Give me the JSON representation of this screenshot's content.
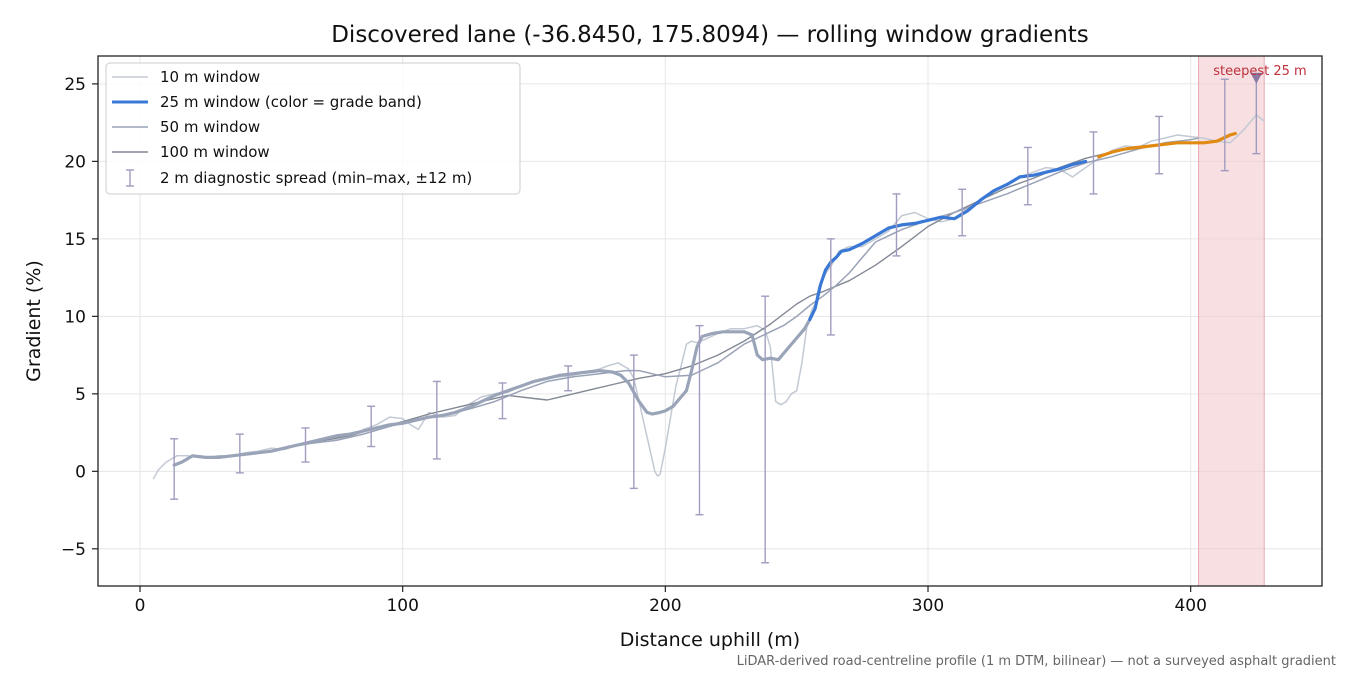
{
  "chart_data": {
    "type": "line",
    "title": "Discovered lane (-36.8450, 175.8094) — rolling window gradients",
    "xlabel": "Distance uphill (m)",
    "ylabel": "Gradient (%)",
    "xlim": [
      -16,
      450
    ],
    "ylim": [
      -7.4,
      26.8
    ],
    "x_ticks": [
      0,
      100,
      200,
      300,
      400
    ],
    "y_ticks": [
      -5,
      0,
      5,
      10,
      15,
      20,
      25
    ],
    "x_tick_labels": [
      "0",
      "100",
      "200",
      "300",
      "400"
    ],
    "y_tick_labels": [
      "−5",
      "0",
      "5",
      "10",
      "15",
      "20",
      "25"
    ],
    "grid": true,
    "legend_position": "top-left",
    "footnote": "LiDAR-derived road-centreline profile (1 m DTM, bilinear) — not a surveyed asphalt gradient",
    "colors": {
      "w10": "#c3c9d4",
      "w25_gray": "#9aa4b8",
      "w25_blue": "#3a78d6",
      "w25_orange": "#e08a12",
      "w50": "#99a2b6",
      "w100": "#828894",
      "errorbar": "#a09cbf",
      "highlight": "#f2c9cf",
      "marker": "#8a7aa3",
      "steep_text": "#c0303a"
    },
    "series": [
      {
        "name": "10 m window",
        "key": "w10",
        "x": [
          5,
          7,
          10,
          14,
          18,
          22,
          26,
          30,
          35,
          40,
          45,
          50,
          55,
          60,
          65,
          70,
          75,
          80,
          85,
          90,
          95,
          100,
          103,
          106,
          110,
          115,
          120,
          125,
          130,
          135,
          140,
          145,
          150,
          155,
          160,
          165,
          170,
          175,
          178,
          182,
          186,
          188,
          190,
          192,
          194,
          196,
          197,
          198,
          200,
          202,
          204,
          206,
          208,
          210,
          212,
          215,
          220,
          225,
          230,
          235,
          238,
          240,
          242,
          244,
          246,
          248,
          250,
          252,
          254,
          256,
          258,
          260,
          262,
          264,
          266,
          270,
          275,
          280,
          285,
          290,
          295,
          300,
          305,
          310,
          315,
          320,
          325,
          330,
          335,
          340,
          345,
          350,
          355,
          360,
          365,
          370,
          375,
          380,
          385,
          390,
          395,
          400,
          405,
          410,
          415,
          420,
          425,
          428
        ],
        "y": [
          -0.5,
          0.1,
          0.6,
          1.0,
          1.0,
          0.9,
          0.9,
          1.0,
          1.0,
          1.2,
          1.3,
          1.5,
          1.4,
          1.7,
          1.9,
          2.0,
          2.1,
          2.2,
          2.7,
          3.0,
          3.5,
          3.4,
          3.0,
          2.7,
          3.8,
          3.5,
          3.6,
          4.3,
          4.8,
          5.0,
          5.1,
          5.5,
          5.8,
          6.0,
          6.1,
          6.2,
          6.4,
          6.6,
          6.8,
          7.0,
          6.6,
          6.0,
          4.5,
          3.0,
          1.5,
          0.0,
          -0.3,
          -0.2,
          1.5,
          3.5,
          5.5,
          6.8,
          8.2,
          8.4,
          8.3,
          8.5,
          8.9,
          9.2,
          9.2,
          9.4,
          9.1,
          8.0,
          4.5,
          4.3,
          4.5,
          5.0,
          5.2,
          7.0,
          9.5,
          10.5,
          11.0,
          12.5,
          13.0,
          13.5,
          14.2,
          14.5,
          14.5,
          15.0,
          15.5,
          16.5,
          16.7,
          16.3,
          16.1,
          16.3,
          17.0,
          17.5,
          18.0,
          18.5,
          19.0,
          19.3,
          19.6,
          19.5,
          19.0,
          19.6,
          20.2,
          20.7,
          21.0,
          20.9,
          21.3,
          21.5,
          21.7,
          21.6,
          21.5,
          21.3,
          21.2,
          22.0,
          23.0,
          22.6
        ]
      },
      {
        "name": "25 m window (color = grade band)",
        "key": "w25",
        "x": [
          13,
          16,
          20,
          25,
          30,
          35,
          40,
          45,
          50,
          55,
          60,
          65,
          70,
          75,
          80,
          85,
          90,
          95,
          100,
          105,
          110,
          115,
          120,
          125,
          130,
          135,
          140,
          145,
          150,
          155,
          160,
          165,
          170,
          175,
          180,
          183,
          186,
          190,
          193,
          195,
          198,
          200,
          203,
          205,
          208,
          210,
          212,
          214,
          218,
          222,
          226,
          230,
          233,
          235,
          237,
          240,
          243,
          246,
          250,
          253,
          255,
          257,
          259,
          261,
          263,
          265,
          267,
          270,
          275,
          280,
          285,
          290,
          295,
          300,
          305,
          310,
          315,
          320,
          325,
          330,
          335,
          340,
          345,
          350,
          355,
          360,
          365,
          370,
          375,
          380,
          385,
          390,
          395,
          400,
          405,
          410,
          415,
          417
        ],
        "y": [
          0.4,
          0.6,
          1.0,
          0.9,
          0.9,
          1.0,
          1.1,
          1.2,
          1.3,
          1.5,
          1.7,
          1.9,
          2.1,
          2.3,
          2.4,
          2.6,
          2.8,
          3.0,
          3.1,
          3.3,
          3.5,
          3.6,
          3.8,
          4.1,
          4.5,
          4.9,
          5.2,
          5.5,
          5.8,
          6.0,
          6.2,
          6.3,
          6.4,
          6.5,
          6.4,
          6.2,
          5.7,
          4.5,
          3.8,
          3.7,
          3.8,
          3.9,
          4.2,
          4.6,
          5.2,
          6.5,
          8.0,
          8.7,
          8.9,
          9.0,
          9.0,
          9.0,
          8.8,
          7.5,
          7.2,
          7.3,
          7.2,
          7.8,
          8.6,
          9.2,
          9.8,
          10.5,
          12.0,
          13.0,
          13.5,
          13.8,
          14.2,
          14.3,
          14.7,
          15.2,
          15.7,
          15.9,
          16.0,
          16.2,
          16.4,
          16.3,
          16.8,
          17.5,
          18.1,
          18.5,
          19.0,
          19.1,
          19.3,
          19.5,
          19.8,
          20.0,
          20.3,
          20.6,
          20.8,
          20.9,
          21.0,
          21.1,
          21.2,
          21.2,
          21.2,
          21.3,
          21.7,
          21.8
        ],
        "bands": [
          {
            "band": "gray",
            "from": 13,
            "to": 255
          },
          {
            "band": "blue",
            "from": 255,
            "to": 362
          },
          {
            "band": "orange",
            "from": 362,
            "to": 417
          }
        ]
      },
      {
        "name": "50 m window",
        "key": "w50",
        "x": [
          25,
          35,
          45,
          55,
          65,
          75,
          85,
          95,
          105,
          115,
          125,
          135,
          145,
          155,
          165,
          175,
          180,
          185,
          190,
          200,
          210,
          215,
          220,
          225,
          230,
          235,
          240,
          245,
          250,
          255,
          260,
          265,
          270,
          275,
          280,
          290,
          300,
          310,
          320,
          330,
          340,
          350,
          360,
          370,
          380,
          390,
          400,
          403
        ],
        "y": [
          0.9,
          1.0,
          1.2,
          1.5,
          1.8,
          2.0,
          2.4,
          2.9,
          3.3,
          3.6,
          4.0,
          4.5,
          5.2,
          5.8,
          6.1,
          6.3,
          6.4,
          6.5,
          6.5,
          6.1,
          6.2,
          6.6,
          7.0,
          7.6,
          8.2,
          8.6,
          9.0,
          9.4,
          10.0,
          10.7,
          11.3,
          12.0,
          12.8,
          13.8,
          14.8,
          15.6,
          16.2,
          16.7,
          17.3,
          17.9,
          18.6,
          19.3,
          19.9,
          20.3,
          20.8,
          21.2,
          21.4,
          21.5
        ]
      },
      {
        "name": "100 m window",
        "key": "w100",
        "x": [
          50,
          60,
          70,
          80,
          90,
          100,
          110,
          120,
          130,
          140,
          150,
          155,
          160,
          170,
          180,
          190,
          200,
          210,
          220,
          230,
          240,
          250,
          255,
          260,
          270,
          280,
          290,
          300,
          310,
          320,
          330,
          340,
          350,
          360,
          370,
          380
        ],
        "y": [
          1.3,
          1.7,
          2.0,
          2.3,
          2.8,
          3.2,
          3.7,
          4.1,
          4.5,
          4.9,
          4.7,
          4.6,
          4.8,
          5.2,
          5.6,
          6.0,
          6.3,
          6.8,
          7.5,
          8.4,
          9.5,
          10.8,
          11.3,
          11.6,
          12.3,
          13.3,
          14.5,
          15.8,
          16.7,
          17.5,
          18.3,
          18.9,
          19.6,
          20.2,
          20.6,
          20.9
        ]
      }
    ],
    "error_bars": {
      "name": "2 m diagnostic spread (min–max, ±12 m)",
      "x": [
        13,
        38,
        63,
        88,
        113,
        138,
        163,
        188,
        213,
        238,
        263,
        288,
        313,
        338,
        363,
        388,
        413,
        425
      ],
      "low": [
        -1.8,
        -0.1,
        0.6,
        1.6,
        0.8,
        3.4,
        5.2,
        -1.1,
        -2.8,
        -5.9,
        8.8,
        13.9,
        15.2,
        17.2,
        17.9,
        19.2,
        19.4,
        20.5
      ],
      "high": [
        2.1,
        2.4,
        2.8,
        4.2,
        5.8,
        5.7,
        6.8,
        7.5,
        9.4,
        11.3,
        15.0,
        17.9,
        18.2,
        20.9,
        21.9,
        22.9,
        25.3,
        25.5
      ]
    },
    "highlight": {
      "label": "steepest 25 m",
      "x_from": 403,
      "x_to": 428,
      "marker_x": 425,
      "marker_y": 25.4
    }
  }
}
